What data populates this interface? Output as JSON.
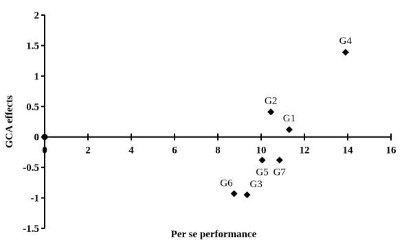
{
  "chart_data": {
    "type": "scatter",
    "xlabel": "Per se performance",
    "ylabel": "GCA effects",
    "xlim": [
      0,
      16
    ],
    "ylim": [
      -1.5,
      2
    ],
    "x_ticks": [
      0,
      2,
      4,
      6,
      8,
      10,
      12,
      14,
      16
    ],
    "x_tick_labels": [
      "0",
      "2",
      "4",
      "6",
      "8",
      "10",
      "12",
      "14",
      "16"
    ],
    "y_ticks": [
      -1.5,
      -1,
      -0.5,
      0,
      0.5,
      1,
      1.5,
      2
    ],
    "y_tick_labels": [
      "-1.5",
      "-1",
      "-0.5",
      "0",
      "0.5",
      "1",
      "1.5",
      "2"
    ],
    "grid": false,
    "marker": "diamond",
    "marker_color": "#000000",
    "points": [
      {
        "label": "G1",
        "x": 11.3,
        "y": 0.12,
        "label_pos": "above"
      },
      {
        "label": "G2",
        "x": 10.45,
        "y": 0.41,
        "label_pos": "above"
      },
      {
        "label": "G3",
        "x": 9.35,
        "y": -0.95,
        "label_pos": "above-right"
      },
      {
        "label": "G4",
        "x": 13.9,
        "y": 1.39,
        "label_pos": "above"
      },
      {
        "label": "G5",
        "x": 10.05,
        "y": -0.38,
        "label_pos": "below"
      },
      {
        "label": "G6",
        "x": 8.75,
        "y": -0.93,
        "label_pos": "above-left"
      },
      {
        "label": "G7",
        "x": 10.85,
        "y": -0.38,
        "label_pos": "below"
      }
    ]
  }
}
